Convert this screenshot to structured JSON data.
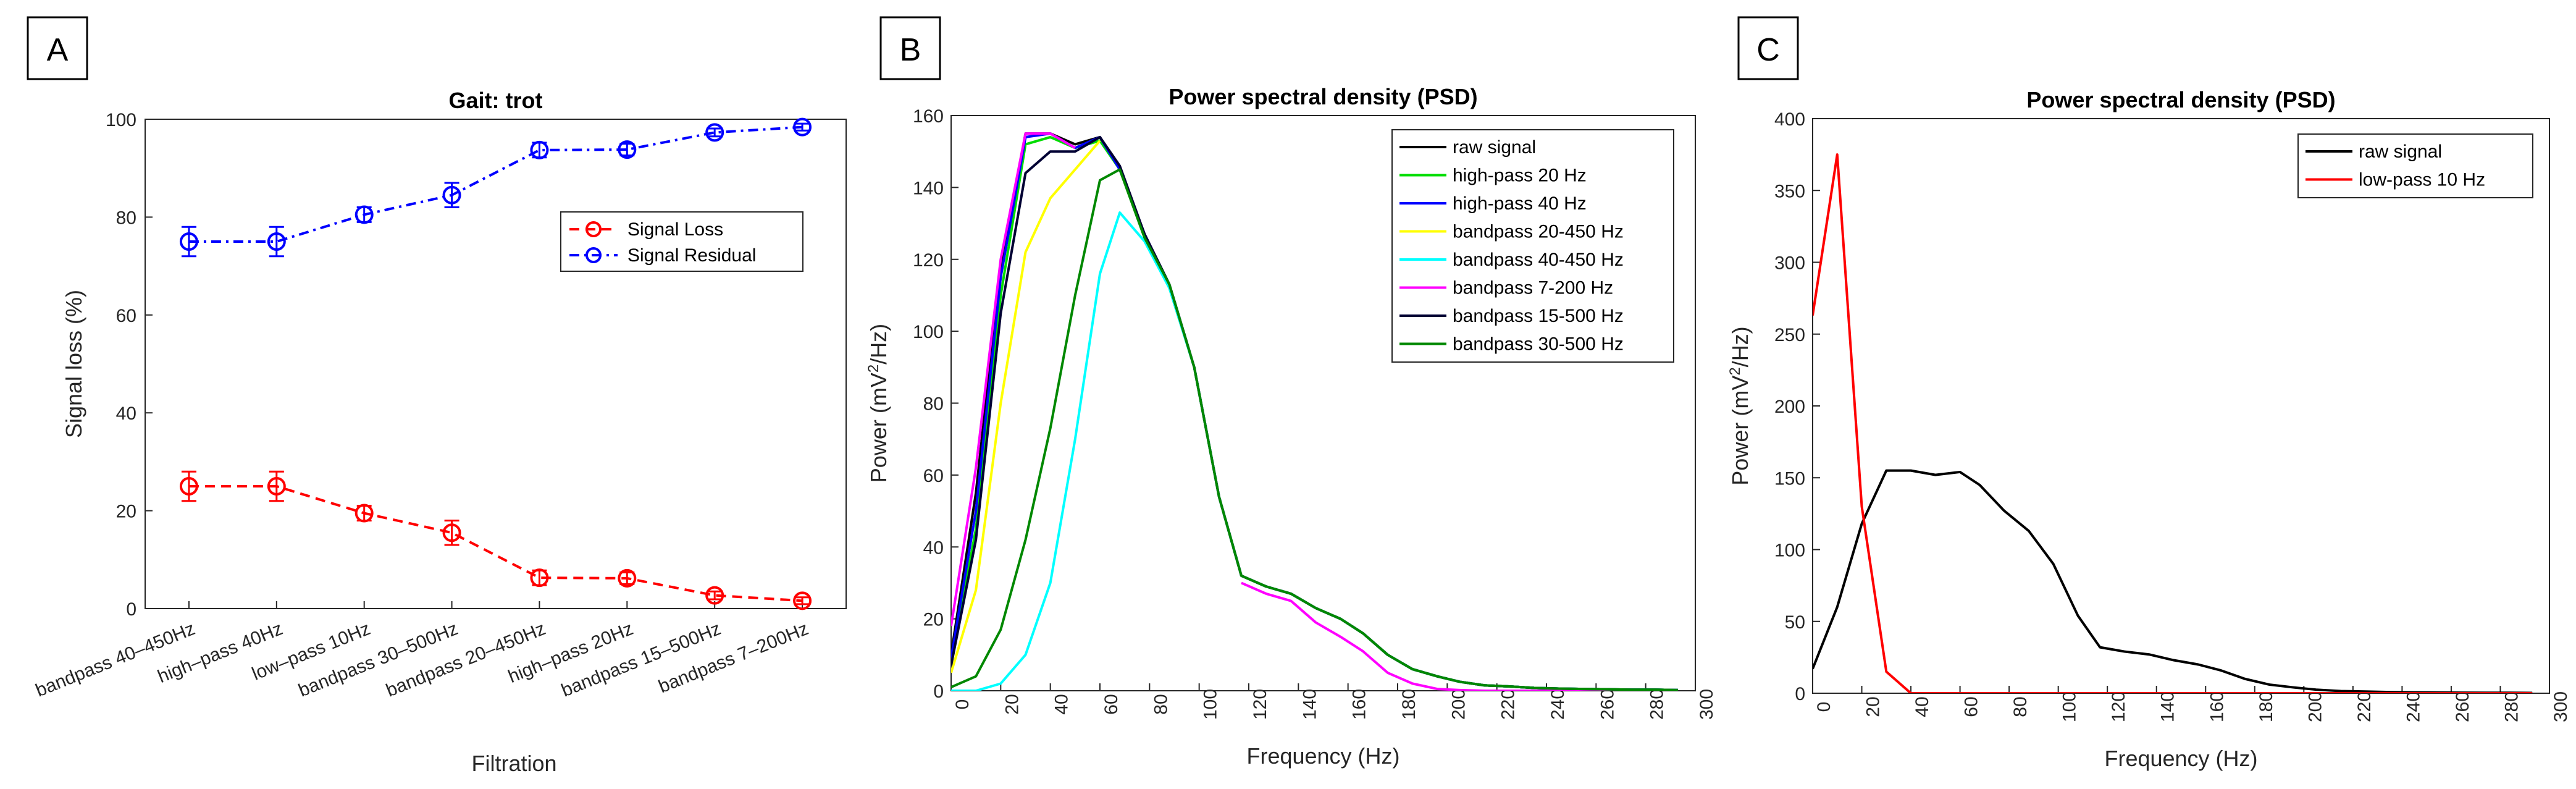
{
  "panels": {
    "a": {
      "letter": "A"
    },
    "b": {
      "letter": "B"
    },
    "c": {
      "letter": "C"
    }
  },
  "chart_data": [
    {
      "panel": "A",
      "type": "line",
      "title": "Gait: trot",
      "xlabel": "Filtration",
      "ylabel": "Signal loss (%)",
      "ylim": [
        0,
        100
      ],
      "yticks": [
        0,
        20,
        40,
        60,
        80,
        100
      ],
      "categories": [
        "bandpass 40–450Hz",
        "high–pass 40Hz",
        "low–pass 10Hz",
        "bandpass 30–500Hz",
        "bandpass 20–450Hz",
        "high–pass 20Hz",
        "bandpass 15–500Hz",
        "bandpass 7–200Hz"
      ],
      "legend_position": "center-right",
      "series": [
        {
          "name": "Signal Loss",
          "color": "#ff0000",
          "values": [
            25,
            25,
            19.5,
            15.5,
            6.3,
            6.2,
            2.7,
            1.6
          ],
          "errors": [
            3,
            3,
            1.5,
            2.5,
            1.5,
            1.2,
            0.8,
            0.7
          ]
        },
        {
          "name": "Signal Residual",
          "color": "#0000ff",
          "values": [
            75,
            75,
            80.5,
            84.5,
            93.7,
            93.8,
            97.3,
            98.4
          ],
          "errors": [
            3,
            3,
            1.5,
            2.5,
            1.5,
            1.2,
            0.8,
            0.7
          ]
        }
      ]
    },
    {
      "panel": "B",
      "type": "line",
      "title": "Power spectral density (PSD)",
      "xlabel": "Frequency (Hz)",
      "ylabel": "Power (mV²/Hz)",
      "xlim": [
        0,
        300
      ],
      "ylim": [
        0,
        160
      ],
      "xticks": [
        0,
        20,
        40,
        60,
        80,
        100,
        120,
        140,
        160,
        180,
        200,
        220,
        240,
        260,
        280,
        300
      ],
      "yticks": [
        0,
        20,
        40,
        60,
        80,
        100,
        120,
        140,
        160
      ],
      "legend_position": "top-right",
      "x": [
        0,
        10,
        20,
        30,
        40,
        50,
        60,
        68,
        78,
        88,
        98,
        108,
        117,
        127,
        137,
        147,
        157,
        166,
        176,
        186,
        196,
        205,
        215,
        225,
        235,
        245,
        255,
        264,
        274,
        284,
        293
      ],
      "series": [
        {
          "name": "raw signal",
          "color": "#000000",
          "values": [
            10,
            55,
            118,
            155,
            155,
            152,
            154,
            145,
            127,
            113,
            90,
            54,
            32,
            29,
            27,
            23,
            20,
            16,
            10,
            6,
            4,
            2.5,
            1.5,
            1.2,
            0.8,
            0.6,
            0.5,
            0.4,
            0.3,
            0.3,
            0.2
          ]
        },
        {
          "name": "high-pass 20 Hz",
          "color": "#00dd00",
          "values": [
            8,
            45,
            110,
            152,
            154,
            151,
            153,
            145,
            126,
            112,
            90,
            54,
            32,
            29,
            27,
            23,
            20,
            16,
            10,
            6,
            4,
            2.5,
            1.5,
            1.2,
            0.8,
            0.6,
            0.5,
            0.4,
            0.3,
            0.3,
            0.2
          ]
        },
        {
          "name": "high-pass 40 Hz",
          "color": "#0000ff",
          "values": [
            9,
            50,
            115,
            154,
            155,
            151,
            154,
            145,
            127,
            113,
            90,
            54,
            32,
            29,
            27,
            23,
            20,
            16,
            10,
            6,
            4,
            2.5,
            1.5,
            1.2,
            0.8,
            0.6,
            0.5,
            0.4,
            0.3,
            0.3,
            0.2
          ]
        },
        {
          "name": "bandpass 20-450 Hz",
          "color": "#ffff00",
          "values": [
            5,
            28,
            80,
            122,
            137,
            145,
            153,
            null,
            null,
            null,
            null,
            null,
            null,
            null,
            null,
            null,
            null,
            null,
            null,
            null,
            null,
            null,
            null,
            null,
            null,
            null,
            null,
            null,
            null,
            null,
            null
          ]
        },
        {
          "name": "bandpass 40-450 Hz",
          "color": "#00ffff",
          "values": [
            0,
            0,
            2,
            10,
            30,
            70,
            116,
            133,
            125,
            112,
            90,
            54,
            32,
            29,
            27,
            23,
            20,
            16,
            10,
            6,
            4,
            2.5,
            1.5,
            1.2,
            0.8,
            0.6,
            0.5,
            0.4,
            0.3,
            0.3,
            0.2
          ]
        },
        {
          "name": "bandpass 7-200 Hz",
          "color": "#ff00ff",
          "values": [
            18,
            62,
            120,
            155,
            155,
            151,
            null,
            null,
            null,
            null,
            null,
            null,
            30,
            27,
            25,
            19,
            15,
            11,
            5,
            2,
            0.5,
            0.2,
            0,
            0,
            0,
            0,
            0,
            0,
            0,
            0,
            0
          ]
        },
        {
          "name": "bandpass 15-500 Hz",
          "color": "#000033",
          "values": [
            7,
            42,
            105,
            144,
            150,
            150,
            154,
            146,
            127,
            113,
            90,
            54,
            32,
            29,
            27,
            23,
            20,
            16,
            10,
            6,
            4,
            2.5,
            1.5,
            1.2,
            0.8,
            0.6,
            0.5,
            0.4,
            0.3,
            0.3,
            0.2
          ]
        },
        {
          "name": "bandpass 30-500 Hz",
          "color": "#008800",
          "values": [
            1,
            4,
            17,
            42,
            73,
            110,
            142,
            145,
            126,
            113,
            90,
            54,
            32,
            29,
            27,
            23,
            20,
            16,
            10,
            6,
            4,
            2.5,
            1.5,
            1.2,
            0.8,
            0.6,
            0.5,
            0.4,
            0.3,
            0.3,
            0.2
          ]
        }
      ]
    },
    {
      "panel": "C",
      "type": "line",
      "title": "Power spectral density (PSD)",
      "xlabel": "Frequency (Hz)",
      "ylabel": "Power (mV²/Hz)",
      "xlim": [
        0,
        300
      ],
      "ylim": [
        0,
        400
      ],
      "xticks": [
        0,
        20,
        40,
        60,
        80,
        100,
        120,
        140,
        160,
        180,
        200,
        220,
        240,
        260,
        280,
        300
      ],
      "yticks": [
        0,
        50,
        100,
        150,
        200,
        250,
        300,
        350,
        400
      ],
      "legend_position": "top-right",
      "x": [
        0,
        10,
        20,
        30,
        40,
        50,
        60,
        68,
        78,
        88,
        98,
        108,
        117,
        127,
        137,
        147,
        157,
        166,
        176,
        186,
        196,
        205,
        215,
        225,
        235,
        245,
        255,
        264,
        274,
        284,
        293
      ],
      "series": [
        {
          "name": "raw signal",
          "color": "#000000",
          "values": [
            17,
            60,
            118,
            155,
            155,
            152,
            154,
            145,
            127,
            113,
            90,
            54,
            32,
            29,
            27,
            23,
            20,
            16,
            10,
            6,
            4,
            2.5,
            1.5,
            1.2,
            0.8,
            0.6,
            0.5,
            0.4,
            0.3,
            0.3,
            0.2
          ]
        },
        {
          "name": "low-pass 10 Hz",
          "color": "#ff0000",
          "values": [
            263,
            375,
            130,
            15,
            0,
            0,
            0,
            0,
            0,
            0,
            0,
            0,
            0,
            0,
            0,
            0,
            0,
            0,
            0,
            0,
            0,
            0,
            0,
            0,
            0,
            0,
            0,
            0,
            0,
            0,
            0
          ]
        }
      ]
    }
  ]
}
